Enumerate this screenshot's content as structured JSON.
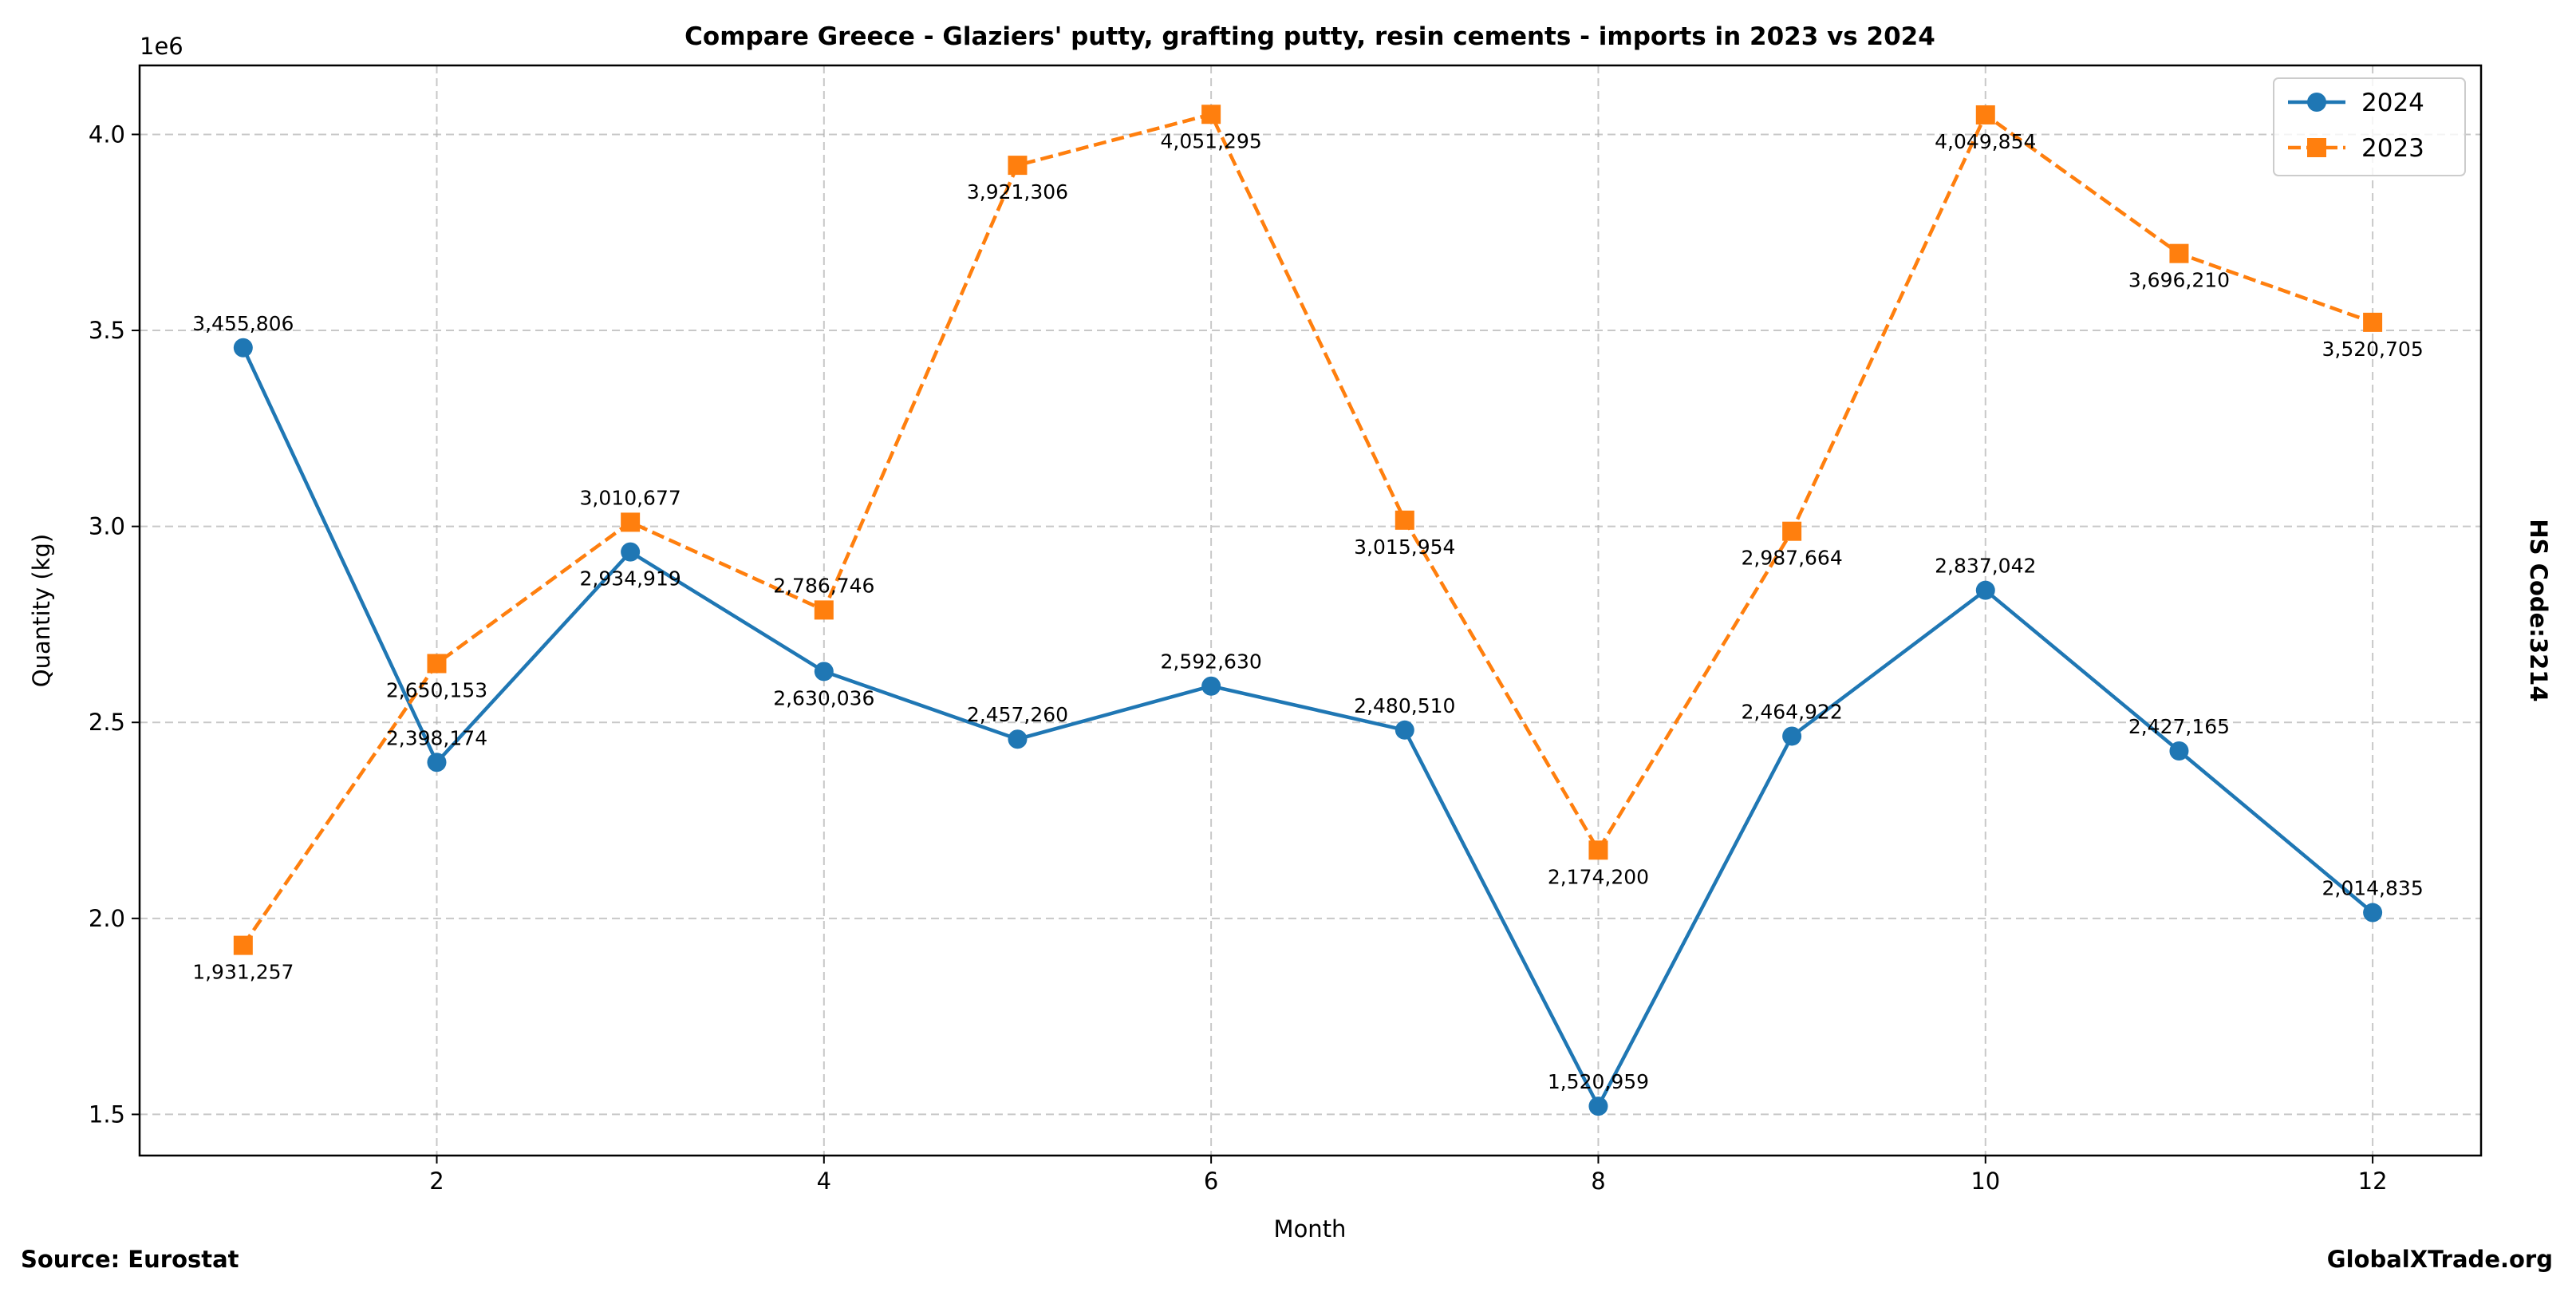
{
  "chart_data": {
    "type": "line",
    "title": "Compare Greece - Glaziers' putty, grafting putty, resin cements - imports in 2023 vs 2024",
    "xlabel": "Month",
    "ylabel": "Quantity (kg)",
    "y_offset_label": "1e6",
    "right_label": "HS Code:3214",
    "source": "Source: Eurostat",
    "brand": "GlobalXTrade.org",
    "xlim": [
      0.465,
      12.56
    ],
    "ylim": [
      1.395,
      4.176
    ],
    "x_ticks": [
      2,
      4,
      6,
      8,
      10,
      12
    ],
    "y_ticks": [
      1.5,
      2.0,
      2.5,
      3.0,
      3.5,
      4.0
    ],
    "y_tick_labels": [
      "1.5",
      "2.0",
      "2.5",
      "3.0",
      "3.5",
      "4.0"
    ],
    "grid": true,
    "legend_position": "top-right",
    "x": [
      1,
      2,
      3,
      4,
      5,
      6,
      7,
      8,
      9,
      10,
      11,
      12
    ],
    "series": [
      {
        "name": "2024",
        "color": "#1f77b4",
        "marker": "circle",
        "linestyle": "solid",
        "values": [
          3455806,
          2398174,
          2934919,
          2630036,
          2457260,
          2592630,
          2480510,
          1520959,
          2464922,
          2837042,
          2427165,
          2014835
        ],
        "labels": [
          "3,455,806",
          "2,398,174",
          "2,934,919",
          "2,630,036",
          "2,457,260",
          "2,592,630",
          "2,480,510",
          "1,520,959",
          "2,464,922",
          "2,837,042",
          "2,427,165",
          "2,014,835"
        ]
      },
      {
        "name": "2023",
        "color": "#ff7f0e",
        "marker": "square",
        "linestyle": "dashed",
        "values": [
          1931257,
          2650153,
          3010677,
          2786746,
          3921306,
          4051295,
          3015954,
          2174200,
          2987664,
          4049854,
          3696210,
          3520705
        ],
        "labels": [
          "1,931,257",
          "2,650,153",
          "3,010,677",
          "2,786,746",
          "3,921,306",
          "4,051,295",
          "3,015,954",
          "2,174,200",
          "2,987,664",
          "4,049,854",
          "3,696,210",
          "3,520,705"
        ]
      }
    ]
  }
}
